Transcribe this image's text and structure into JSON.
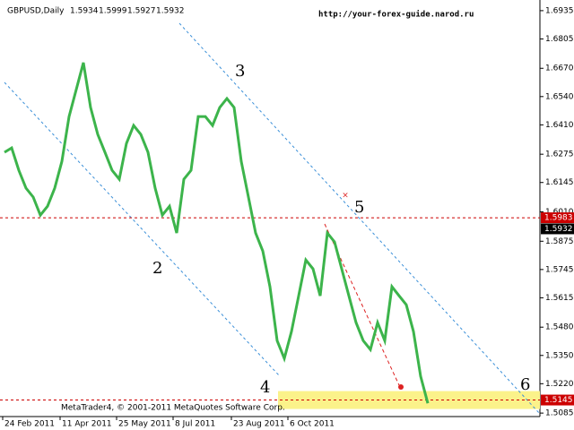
{
  "chart_data": {
    "type": "line",
    "symbol": "GBPUSD,Daily",
    "ohlc": [
      1.5934,
      1.5999,
      1.5927,
      1.5932
    ],
    "watermark": "http://your-forex-guide.narod.ru",
    "footer": "MetaTrader4, © 2001-2011 MetaQuotes Software Corp.",
    "series": [
      {
        "name": "GBPUSD",
        "color": "#3cb44b",
        "values": [
          1.6284,
          1.6304,
          1.6201,
          1.6119,
          1.6078,
          1.5995,
          1.6036,
          1.6119,
          1.6242,
          1.6448,
          1.6572,
          1.6696,
          1.649,
          1.6366,
          1.6284,
          1.6201,
          1.616,
          1.6325,
          1.6407,
          1.6366,
          1.6284,
          1.6119,
          1.5995,
          1.6036,
          1.5913,
          1.616,
          1.6201,
          1.6448,
          1.6448,
          1.6407,
          1.649,
          1.6531,
          1.649,
          1.6242,
          1.6078,
          1.5913,
          1.583,
          1.5666,
          1.5418,
          1.5336,
          1.546,
          1.5624,
          1.5789,
          1.5748,
          1.5624,
          1.5913,
          1.5872,
          1.5748,
          1.5624,
          1.5501,
          1.5418,
          1.5377,
          1.5501,
          1.5418,
          1.5666,
          1.5624,
          1.5583,
          1.546,
          1.5254,
          1.513
        ]
      }
    ],
    "xlim": [
      -0.625,
      74.625
    ],
    "xticks": [
      {
        "value": -0.25,
        "label": "24 Feb 2011"
      },
      {
        "value": 7.75,
        "label": "11 Apr 2011"
      },
      {
        "value": 15.625,
        "label": "25 May 2011"
      },
      {
        "value": 23.5,
        "label": "8 Jul 2011"
      },
      {
        "value": 31.625,
        "label": "23 Aug 2011"
      },
      {
        "value": 39.5,
        "label": "6 Oct 2011"
      }
    ],
    "ylim": [
      1.5069,
      1.6984
    ],
    "yticks": [
      1.6935,
      1.6805,
      {
        "value": 1.667,
        "label": "1.6670"
      },
      {
        "value": 1.654,
        "label": "1.6540"
      },
      {
        "value": 1.641,
        "label": "1.6410"
      },
      1.6275,
      1.6145,
      {
        "value": 1.601,
        "label": "1.6010"
      },
      1.5875,
      1.5745,
      1.5615,
      {
        "value": 1.548,
        "label": "1.5480"
      },
      {
        "value": 1.535,
        "label": "1.5350"
      },
      {
        "value": 1.522,
        "label": "1.5220"
      },
      1.5085
    ],
    "levels": [
      {
        "value": 1.5983,
        "color": "#cc0000"
      },
      {
        "value": 1.5145,
        "color": "#cc0000"
      }
    ],
    "last_price": 1.5932,
    "annotations": [
      "2",
      "3",
      "4",
      "5",
      "6"
    ]
  }
}
